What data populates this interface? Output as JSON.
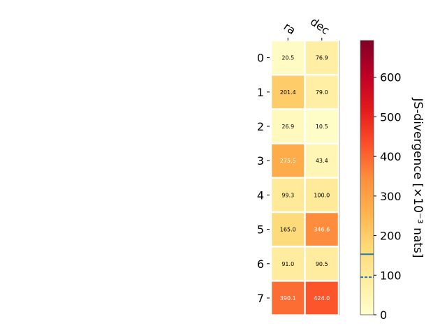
{
  "chart_data": {
    "type": "heatmap",
    "columns": [
      "ra",
      "dec"
    ],
    "rows": [
      "0",
      "1",
      "2",
      "3",
      "4",
      "5",
      "6",
      "7"
    ],
    "values": [
      [
        20.5,
        76.9
      ],
      [
        201.4,
        79.0
      ],
      [
        26.9,
        10.5
      ],
      [
        275.5,
        43.4
      ],
      [
        99.3,
        100.0
      ],
      [
        165.0,
        346.6
      ],
      [
        91.0,
        90.5
      ],
      [
        390.1,
        424.0
      ]
    ],
    "cell_labels": [
      [
        "20.5",
        "76.9"
      ],
      [
        "201.4",
        "79.0"
      ],
      [
        "26.9",
        "10.5"
      ],
      [
        "275.5",
        "43.4"
      ],
      [
        "99.3",
        "100.0"
      ],
      [
        "165.0",
        "346.6"
      ],
      [
        "91.0",
        "90.5"
      ],
      [
        "390.1",
        "424.0"
      ]
    ],
    "colormap": "YlOrRd",
    "colorbar": {
      "label": "JS-divergence [×10⁻³ nats]",
      "range": [
        0,
        693
      ],
      "ticks": [
        0,
        100,
        200,
        300,
        400,
        500,
        600
      ],
      "tick_labels": [
        "0",
        "100",
        "200",
        "300",
        "400",
        "500",
        "600"
      ],
      "marker_lines": [
        {
          "value": 153,
          "style": "solid",
          "color": "#1f77b4"
        },
        {
          "value": 95,
          "style": "dashed",
          "color": "#1f77b4"
        }
      ]
    }
  }
}
